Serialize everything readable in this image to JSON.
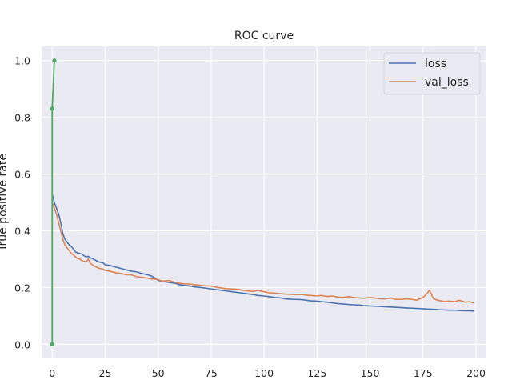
{
  "chart_data": {
    "type": "line",
    "title": "ROC curve",
    "xlabel": "",
    "ylabel": "True positive rate",
    "xlim": [
      -5.0,
      204.9
    ],
    "ylim": [
      -0.05,
      1.05
    ],
    "x_ticks": [
      0,
      25,
      50,
      75,
      100,
      125,
      150,
      175,
      200
    ],
    "x_tick_labels": [
      "0",
      "25",
      "50",
      "75",
      "100",
      "125",
      "150",
      "175",
      "200"
    ],
    "y_ticks": [
      0.0,
      0.2,
      0.4,
      0.6,
      0.8,
      1.0
    ],
    "y_tick_labels": [
      "0.0",
      "0.2",
      "0.4",
      "0.6",
      "0.8",
      "1.0"
    ],
    "grid": true,
    "legend_position": "top-right",
    "colors": {
      "background": "#eaeaf2",
      "grid": "#ffffff",
      "loss": "#4c72b0",
      "val_loss": "#dd8452",
      "roc": "#55a868"
    },
    "series": [
      {
        "name": "loss",
        "color": "#4c72b0",
        "points": [
          [
            0,
            0.53
          ],
          [
            1,
            0.5
          ],
          [
            2,
            0.48
          ],
          [
            3,
            0.46
          ],
          [
            4,
            0.43
          ],
          [
            5,
            0.39
          ],
          [
            6,
            0.37
          ],
          [
            7,
            0.36
          ],
          [
            8,
            0.35
          ],
          [
            9,
            0.345
          ],
          [
            10,
            0.335
          ],
          [
            11,
            0.325
          ],
          [
            12,
            0.322
          ],
          [
            13,
            0.32
          ],
          [
            14,
            0.318
          ],
          [
            15,
            0.312
          ],
          [
            16,
            0.308
          ],
          [
            17,
            0.31
          ],
          [
            18,
            0.305
          ],
          [
            20,
            0.298
          ],
          [
            22,
            0.29
          ],
          [
            24,
            0.287
          ],
          [
            25,
            0.28
          ],
          [
            27,
            0.278
          ],
          [
            30,
            0.272
          ],
          [
            32,
            0.268
          ],
          [
            35,
            0.262
          ],
          [
            37,
            0.258
          ],
          [
            40,
            0.255
          ],
          [
            42,
            0.25
          ],
          [
            45,
            0.245
          ],
          [
            47,
            0.24
          ],
          [
            50,
            0.225
          ],
          [
            52,
            0.222
          ],
          [
            55,
            0.218
          ],
          [
            58,
            0.215
          ],
          [
            60,
            0.21
          ],
          [
            62,
            0.208
          ],
          [
            65,
            0.205
          ],
          [
            67,
            0.202
          ],
          [
            70,
            0.2
          ],
          [
            72,
            0.198
          ],
          [
            75,
            0.195
          ],
          [
            78,
            0.192
          ],
          [
            80,
            0.19
          ],
          [
            82,
            0.188
          ],
          [
            85,
            0.185
          ],
          [
            88,
            0.182
          ],
          [
            90,
            0.18
          ],
          [
            92,
            0.178
          ],
          [
            95,
            0.175
          ],
          [
            97,
            0.172
          ],
          [
            100,
            0.17
          ],
          [
            102,
            0.168
          ],
          [
            105,
            0.165
          ],
          [
            108,
            0.163
          ],
          [
            110,
            0.16
          ],
          [
            112,
            0.159
          ],
          [
            115,
            0.158
          ],
          [
            118,
            0.157
          ],
          [
            120,
            0.155
          ],
          [
            122,
            0.153
          ],
          [
            125,
            0.152
          ],
          [
            127,
            0.15
          ],
          [
            130,
            0.148
          ],
          [
            132,
            0.146
          ],
          [
            135,
            0.143
          ],
          [
            137,
            0.142
          ],
          [
            140,
            0.14
          ],
          [
            142,
            0.139
          ],
          [
            145,
            0.138
          ],
          [
            147,
            0.136
          ],
          [
            150,
            0.135
          ],
          [
            152,
            0.134
          ],
          [
            155,
            0.133
          ],
          [
            157,
            0.132
          ],
          [
            160,
            0.131
          ],
          [
            162,
            0.13
          ],
          [
            165,
            0.129
          ],
          [
            167,
            0.128
          ],
          [
            170,
            0.127
          ],
          [
            172,
            0.126
          ],
          [
            175,
            0.125
          ],
          [
            177,
            0.124
          ],
          [
            180,
            0.123
          ],
          [
            182,
            0.122
          ],
          [
            185,
            0.121
          ],
          [
            187,
            0.12
          ],
          [
            190,
            0.12
          ],
          [
            192,
            0.119
          ],
          [
            195,
            0.118
          ],
          [
            197,
            0.118
          ],
          [
            199,
            0.117
          ]
        ]
      },
      {
        "name": "val_loss",
        "color": "#dd8452",
        "points": [
          [
            0,
            0.5
          ],
          [
            1,
            0.48
          ],
          [
            2,
            0.46
          ],
          [
            3,
            0.43
          ],
          [
            4,
            0.4
          ],
          [
            5,
            0.37
          ],
          [
            6,
            0.35
          ],
          [
            7,
            0.34
          ],
          [
            8,
            0.33
          ],
          [
            9,
            0.32
          ],
          [
            10,
            0.315
          ],
          [
            11,
            0.308
          ],
          [
            12,
            0.302
          ],
          [
            13,
            0.3
          ],
          [
            14,
            0.295
          ],
          [
            15,
            0.292
          ],
          [
            16,
            0.29
          ],
          [
            17,
            0.3
          ],
          [
            18,
            0.285
          ],
          [
            20,
            0.275
          ],
          [
            22,
            0.268
          ],
          [
            24,
            0.265
          ],
          [
            25,
            0.26
          ],
          [
            27,
            0.258
          ],
          [
            30,
            0.252
          ],
          [
            32,
            0.25
          ],
          [
            35,
            0.245
          ],
          [
            37,
            0.245
          ],
          [
            40,
            0.238
          ],
          [
            42,
            0.236
          ],
          [
            45,
            0.233
          ],
          [
            47,
            0.23
          ],
          [
            50,
            0.228
          ],
          [
            52,
            0.222
          ],
          [
            55,
            0.225
          ],
          [
            58,
            0.218
          ],
          [
            60,
            0.215
          ],
          [
            62,
            0.213
          ],
          [
            65,
            0.212
          ],
          [
            67,
            0.21
          ],
          [
            70,
            0.208
          ],
          [
            72,
            0.206
          ],
          [
            75,
            0.205
          ],
          [
            78,
            0.2
          ],
          [
            80,
            0.198
          ],
          [
            82,
            0.196
          ],
          [
            85,
            0.195
          ],
          [
            88,
            0.193
          ],
          [
            90,
            0.19
          ],
          [
            92,
            0.188
          ],
          [
            95,
            0.186
          ],
          [
            97,
            0.19
          ],
          [
            100,
            0.185
          ],
          [
            102,
            0.182
          ],
          [
            105,
            0.18
          ],
          [
            108,
            0.178
          ],
          [
            110,
            0.177
          ],
          [
            112,
            0.176
          ],
          [
            115,
            0.175
          ],
          [
            118,
            0.175
          ],
          [
            120,
            0.173
          ],
          [
            122,
            0.172
          ],
          [
            125,
            0.17
          ],
          [
            127,
            0.172
          ],
          [
            130,
            0.168
          ],
          [
            132,
            0.17
          ],
          [
            135,
            0.166
          ],
          [
            137,
            0.165
          ],
          [
            140,
            0.168
          ],
          [
            142,
            0.165
          ],
          [
            145,
            0.163
          ],
          [
            147,
            0.162
          ],
          [
            150,
            0.165
          ],
          [
            152,
            0.163
          ],
          [
            155,
            0.16
          ],
          [
            157,
            0.16
          ],
          [
            160,
            0.163
          ],
          [
            162,
            0.158
          ],
          [
            165,
            0.158
          ],
          [
            167,
            0.16
          ],
          [
            170,
            0.158
          ],
          [
            172,
            0.155
          ],
          [
            175,
            0.165
          ],
          [
            177,
            0.18
          ],
          [
            178,
            0.19
          ],
          [
            180,
            0.16
          ],
          [
            182,
            0.155
          ],
          [
            185,
            0.15
          ],
          [
            187,
            0.152
          ],
          [
            190,
            0.15
          ],
          [
            192,
            0.155
          ],
          [
            195,
            0.148
          ],
          [
            197,
            0.15
          ],
          [
            199,
            0.145
          ]
        ]
      },
      {
        "color": "#55a868",
        "style": "dashed-with-markers",
        "points": [
          [
            0,
            0.0
          ],
          [
            0,
            0.83
          ],
          [
            1,
            1.0
          ]
        ]
      },
      {
        "color": "#55a868",
        "style": "solid-with-markers",
        "points": [
          [
            0,
            0.0
          ],
          [
            0,
            0.83
          ],
          [
            1,
            1.0
          ]
        ]
      }
    ]
  }
}
